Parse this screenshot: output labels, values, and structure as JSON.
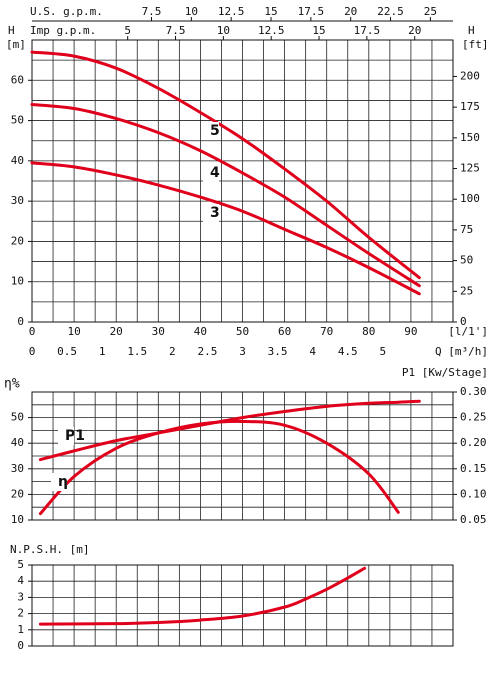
{
  "chart_data": [
    {
      "type": "line",
      "ylabel": "H",
      "yunit": "[m]",
      "y2label": "H",
      "y2unit": "[ft]",
      "xlabel": "[l/1']",
      "x2label": "Q [m³/h]",
      "x3label": "U.S. g.p.m.",
      "x4label": "Imp g.p.m.",
      "x": [
        0,
        10,
        20,
        30,
        40,
        50,
        60,
        70,
        80,
        92
      ],
      "series": [
        {
          "name": "5",
          "color": "#e0001b",
          "values": [
            67,
            66,
            63,
            58,
            52,
            45.5,
            38,
            30,
            21,
            11
          ]
        },
        {
          "name": "4",
          "color": "#e0001b",
          "values": [
            54,
            53,
            50.5,
            47,
            42.5,
            37,
            31,
            24,
            17,
            9
          ]
        },
        {
          "name": "3",
          "color": "#e0001b",
          "values": [
            39.5,
            38.5,
            36.5,
            34,
            31,
            27.5,
            23,
            18.5,
            13.5,
            7
          ]
        }
      ],
      "xlim": [
        0,
        100
      ],
      "xticks": [
        0,
        10,
        20,
        30,
        40,
        50,
        60,
        70,
        80,
        90
      ],
      "x2lim": [
        0,
        6
      ],
      "x2ticks": [
        0,
        0.5,
        1,
        1.5,
        2,
        2.5,
        3,
        3.5,
        4,
        4.5,
        5
      ],
      "x3lim": [
        0,
        26.42
      ],
      "x3ticks": [
        7.5,
        10,
        12.5,
        15,
        17.5,
        20,
        22.5,
        25
      ],
      "x4lim": [
        0,
        22
      ],
      "x4ticks": [
        5,
        7.5,
        10,
        12.5,
        15,
        17.5,
        20
      ],
      "ylim": [
        0,
        70
      ],
      "yticks": [
        0,
        10,
        20,
        30,
        40,
        50,
        60
      ],
      "y2lim": [
        0,
        229.7
      ],
      "y2ticks": [
        0,
        25,
        50,
        75,
        100,
        125,
        150,
        175,
        200
      ],
      "grid": true
    },
    {
      "type": "line",
      "ylabel": "η%",
      "y2label": "P1 [Kw/Stage]",
      "x": [
        2,
        10,
        20,
        30,
        40,
        50,
        60,
        70,
        80,
        87,
        92
      ],
      "series": [
        {
          "name": "P1",
          "color": "#e0001b",
          "axis": "y2",
          "values": [
            0.168,
            0.185,
            0.205,
            0.22,
            0.235,
            0.25,
            0.262,
            0.272,
            0.278,
            0.28,
            0.282
          ]
        },
        {
          "name": "η",
          "color": "#e0001b",
          "values": [
            12.5,
            27,
            38,
            44,
            47.5,
            48.5,
            47,
            40,
            28,
            13,
            null
          ]
        }
      ],
      "xlim": [
        0,
        100
      ],
      "ylim": [
        10,
        60
      ],
      "yticks": [
        10,
        20,
        30,
        40,
        50
      ],
      "y2lim": [
        0.05,
        0.3
      ],
      "y2ticks": [
        0.05,
        {
          "value": 0.1,
          "label": "0.10"
        },
        0.15,
        {
          "value": 0.2,
          "label": "0.20"
        },
        0.25,
        {
          "value": 0.3,
          "label": "0.30"
        }
      ],
      "grid": true
    },
    {
      "type": "line",
      "ylabel": "N.P.S.H. [m]",
      "x": [
        2,
        20,
        30,
        40,
        50,
        60,
        65,
        70,
        75,
        79
      ],
      "series": [
        {
          "name": "NPSH",
          "color": "#e0001b",
          "values": [
            1.35,
            1.38,
            1.45,
            1.6,
            1.85,
            2.4,
            2.9,
            3.5,
            4.2,
            4.8
          ]
        }
      ],
      "xlim": [
        0,
        100
      ],
      "ylim": [
        0,
        5
      ],
      "yticks": [
        0,
        1,
        2,
        3,
        4,
        5
      ],
      "grid": true
    }
  ]
}
